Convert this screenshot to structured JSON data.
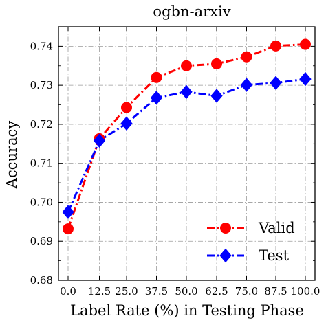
{
  "chart_data": {
    "type": "line",
    "title": "ogbn-arxiv",
    "xlabel": "Label Rate (%) in Testing Phase",
    "ylabel": "Accuracy",
    "categories": [
      "0.0",
      "12.5",
      "25.0",
      "37.5",
      "50.0",
      "62.5",
      "75.0",
      "87.5",
      "100.0"
    ],
    "x": [
      0.0,
      12.5,
      25.0,
      37.5,
      50.0,
      62.5,
      75.0,
      87.5,
      100.0
    ],
    "ylim": [
      0.68,
      0.745
    ],
    "yticks": [
      "0.68",
      "0.69",
      "0.70",
      "0.71",
      "0.72",
      "0.73",
      "0.74"
    ],
    "grid": true,
    "legend_position": "bottom-right",
    "series": [
      {
        "name": "Valid",
        "color": "#ff0000",
        "marker": "circle",
        "line_style": "dash-dot",
        "values": [
          0.6932,
          0.7163,
          0.7243,
          0.732,
          0.735,
          0.7355,
          0.7373,
          0.7401,
          0.7405
        ]
      },
      {
        "name": "Test",
        "color": "#0000ff",
        "marker": "diamond",
        "line_style": "dash-dot",
        "values": [
          0.6975,
          0.7158,
          0.7202,
          0.7268,
          0.7283,
          0.7273,
          0.7301,
          0.7306,
          0.7316
        ]
      }
    ]
  }
}
